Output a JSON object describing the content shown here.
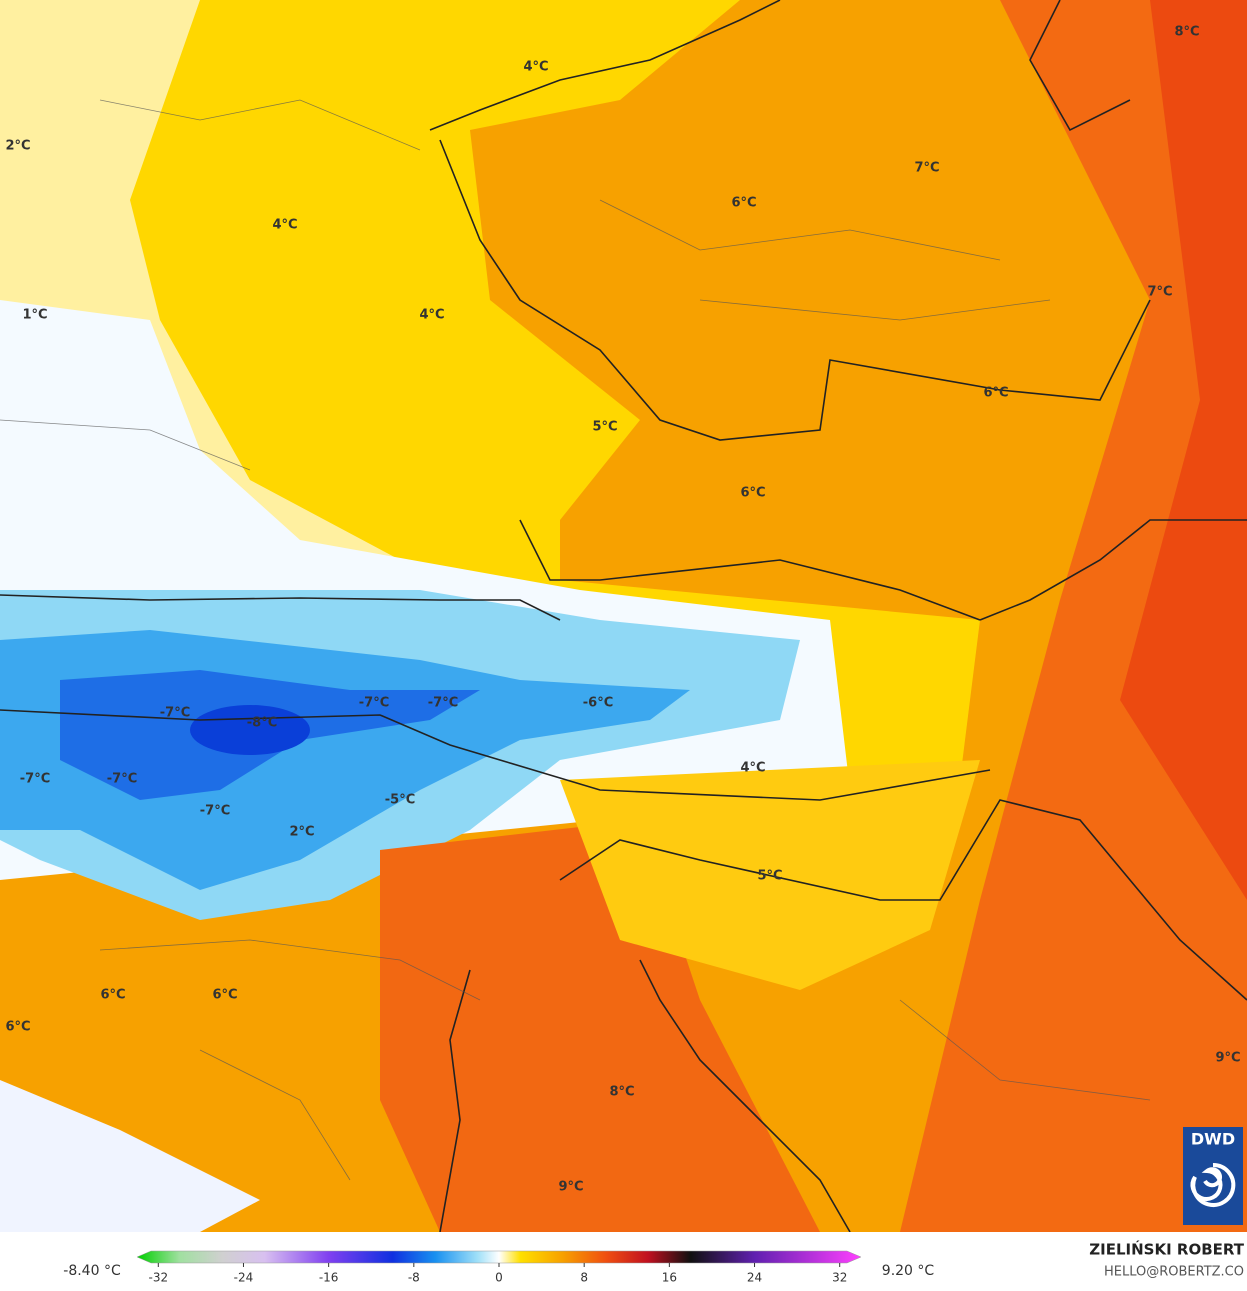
{
  "map_labels": [
    "8°C",
    "4°C",
    "2°C",
    "7°C",
    "6°C",
    "4°C",
    "7°C",
    "1°C",
    "4°C",
    "6°C",
    "5°C",
    "6°C",
    "-6°C",
    "-7°C",
    "-7°C",
    "-7°C",
    "-8°C",
    "4°C",
    "-7°C",
    "-7°C",
    "-5°C",
    "-7°C",
    "2°C",
    "5°C",
    "6°C",
    "6°C",
    "6°C",
    "9°C",
    "8°C",
    "9°C"
  ],
  "logo": "DWD",
  "colorbar": {
    "min_label": "-8.40 °C",
    "max_label": "9.20 °C",
    "lim": [
      -34,
      34
    ],
    "ticks": [
      -32,
      -24,
      -16,
      -8,
      0,
      8,
      16,
      24,
      32
    ],
    "stops": [
      {
        "value": -34,
        "color": "#00d000"
      },
      {
        "value": -30,
        "color": "#a0e0a0"
      },
      {
        "value": -26,
        "color": "#d0d0d0"
      },
      {
        "value": -22,
        "color": "#d8c0f0"
      },
      {
        "value": -16,
        "color": "#8040f0"
      },
      {
        "value": -10,
        "color": "#1030e0"
      },
      {
        "value": -6,
        "color": "#1890f0"
      },
      {
        "value": -2,
        "color": "#a0e0f8"
      },
      {
        "value": 0,
        "color": "#ffffff"
      },
      {
        "value": 2,
        "color": "#ffe000"
      },
      {
        "value": 6,
        "color": "#f7a000"
      },
      {
        "value": 10,
        "color": "#f05010"
      },
      {
        "value": 14,
        "color": "#c01020"
      },
      {
        "value": 18,
        "color": "#101010"
      },
      {
        "value": 24,
        "color": "#6020b0"
      },
      {
        "value": 34,
        "color": "#ff40ff"
      }
    ]
  },
  "author": "ZIELIŃSKI ROBERT",
  "contact": "HELLO@ROBERTZ.CO"
}
